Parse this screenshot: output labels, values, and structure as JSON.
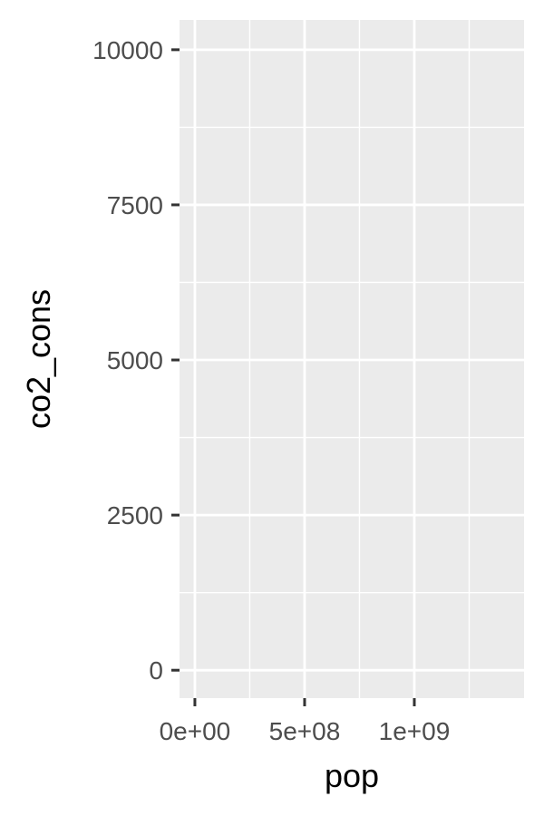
{
  "chart_data": {
    "type": "scatter",
    "xlabel": "pop",
    "ylabel": "co2_cons",
    "x_ticks": [
      {
        "value": 0,
        "label": "0e+00"
      },
      {
        "value": 500000000,
        "label": "5e+08"
      },
      {
        "value": 1000000000,
        "label": "1e+09"
      }
    ],
    "y_ticks": [
      {
        "value": 0,
        "label": "0"
      },
      {
        "value": 2500,
        "label": "2500"
      },
      {
        "value": 5000,
        "label": "5000"
      },
      {
        "value": 7500,
        "label": "7500"
      },
      {
        "value": 10000,
        "label": "10000"
      }
    ],
    "xlim": [
      -70000000,
      1500000000
    ],
    "ylim": [
      -450,
      10480
    ],
    "grid": true,
    "panel_background": "#EBEBEB",
    "grid_color": "#FFFFFF",
    "tick_color": "#333333",
    "points": []
  }
}
